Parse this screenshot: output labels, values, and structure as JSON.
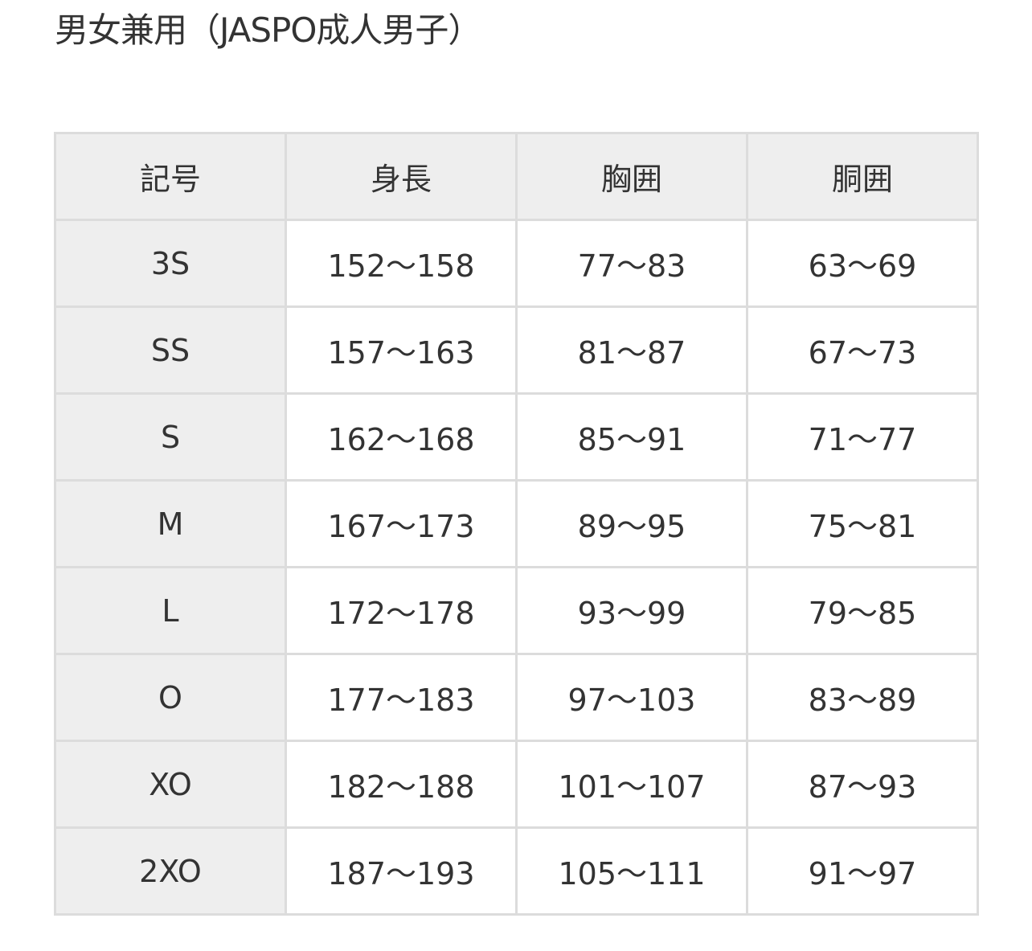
{
  "title": "男女兼用（JASPO成人男子）",
  "table": {
    "headers": [
      "記号",
      "身長",
      "胸囲",
      "胴囲"
    ],
    "rows": [
      [
        "3S",
        "152〜158",
        "77〜83",
        "63〜69"
      ],
      [
        "SS",
        "157〜163",
        "81〜87",
        "67〜73"
      ],
      [
        "S",
        "162〜168",
        "85〜91",
        "71〜77"
      ],
      [
        "M",
        "167〜173",
        "89〜95",
        "75〜81"
      ],
      [
        "L",
        "172〜178",
        "93〜99",
        "79〜85"
      ],
      [
        "O",
        "177〜183",
        "97〜103",
        "83〜89"
      ],
      [
        "XO",
        "182〜188",
        "101〜107",
        "87〜93"
      ],
      [
        "2XO",
        "187〜193",
        "105〜111",
        "91〜97"
      ]
    ]
  }
}
